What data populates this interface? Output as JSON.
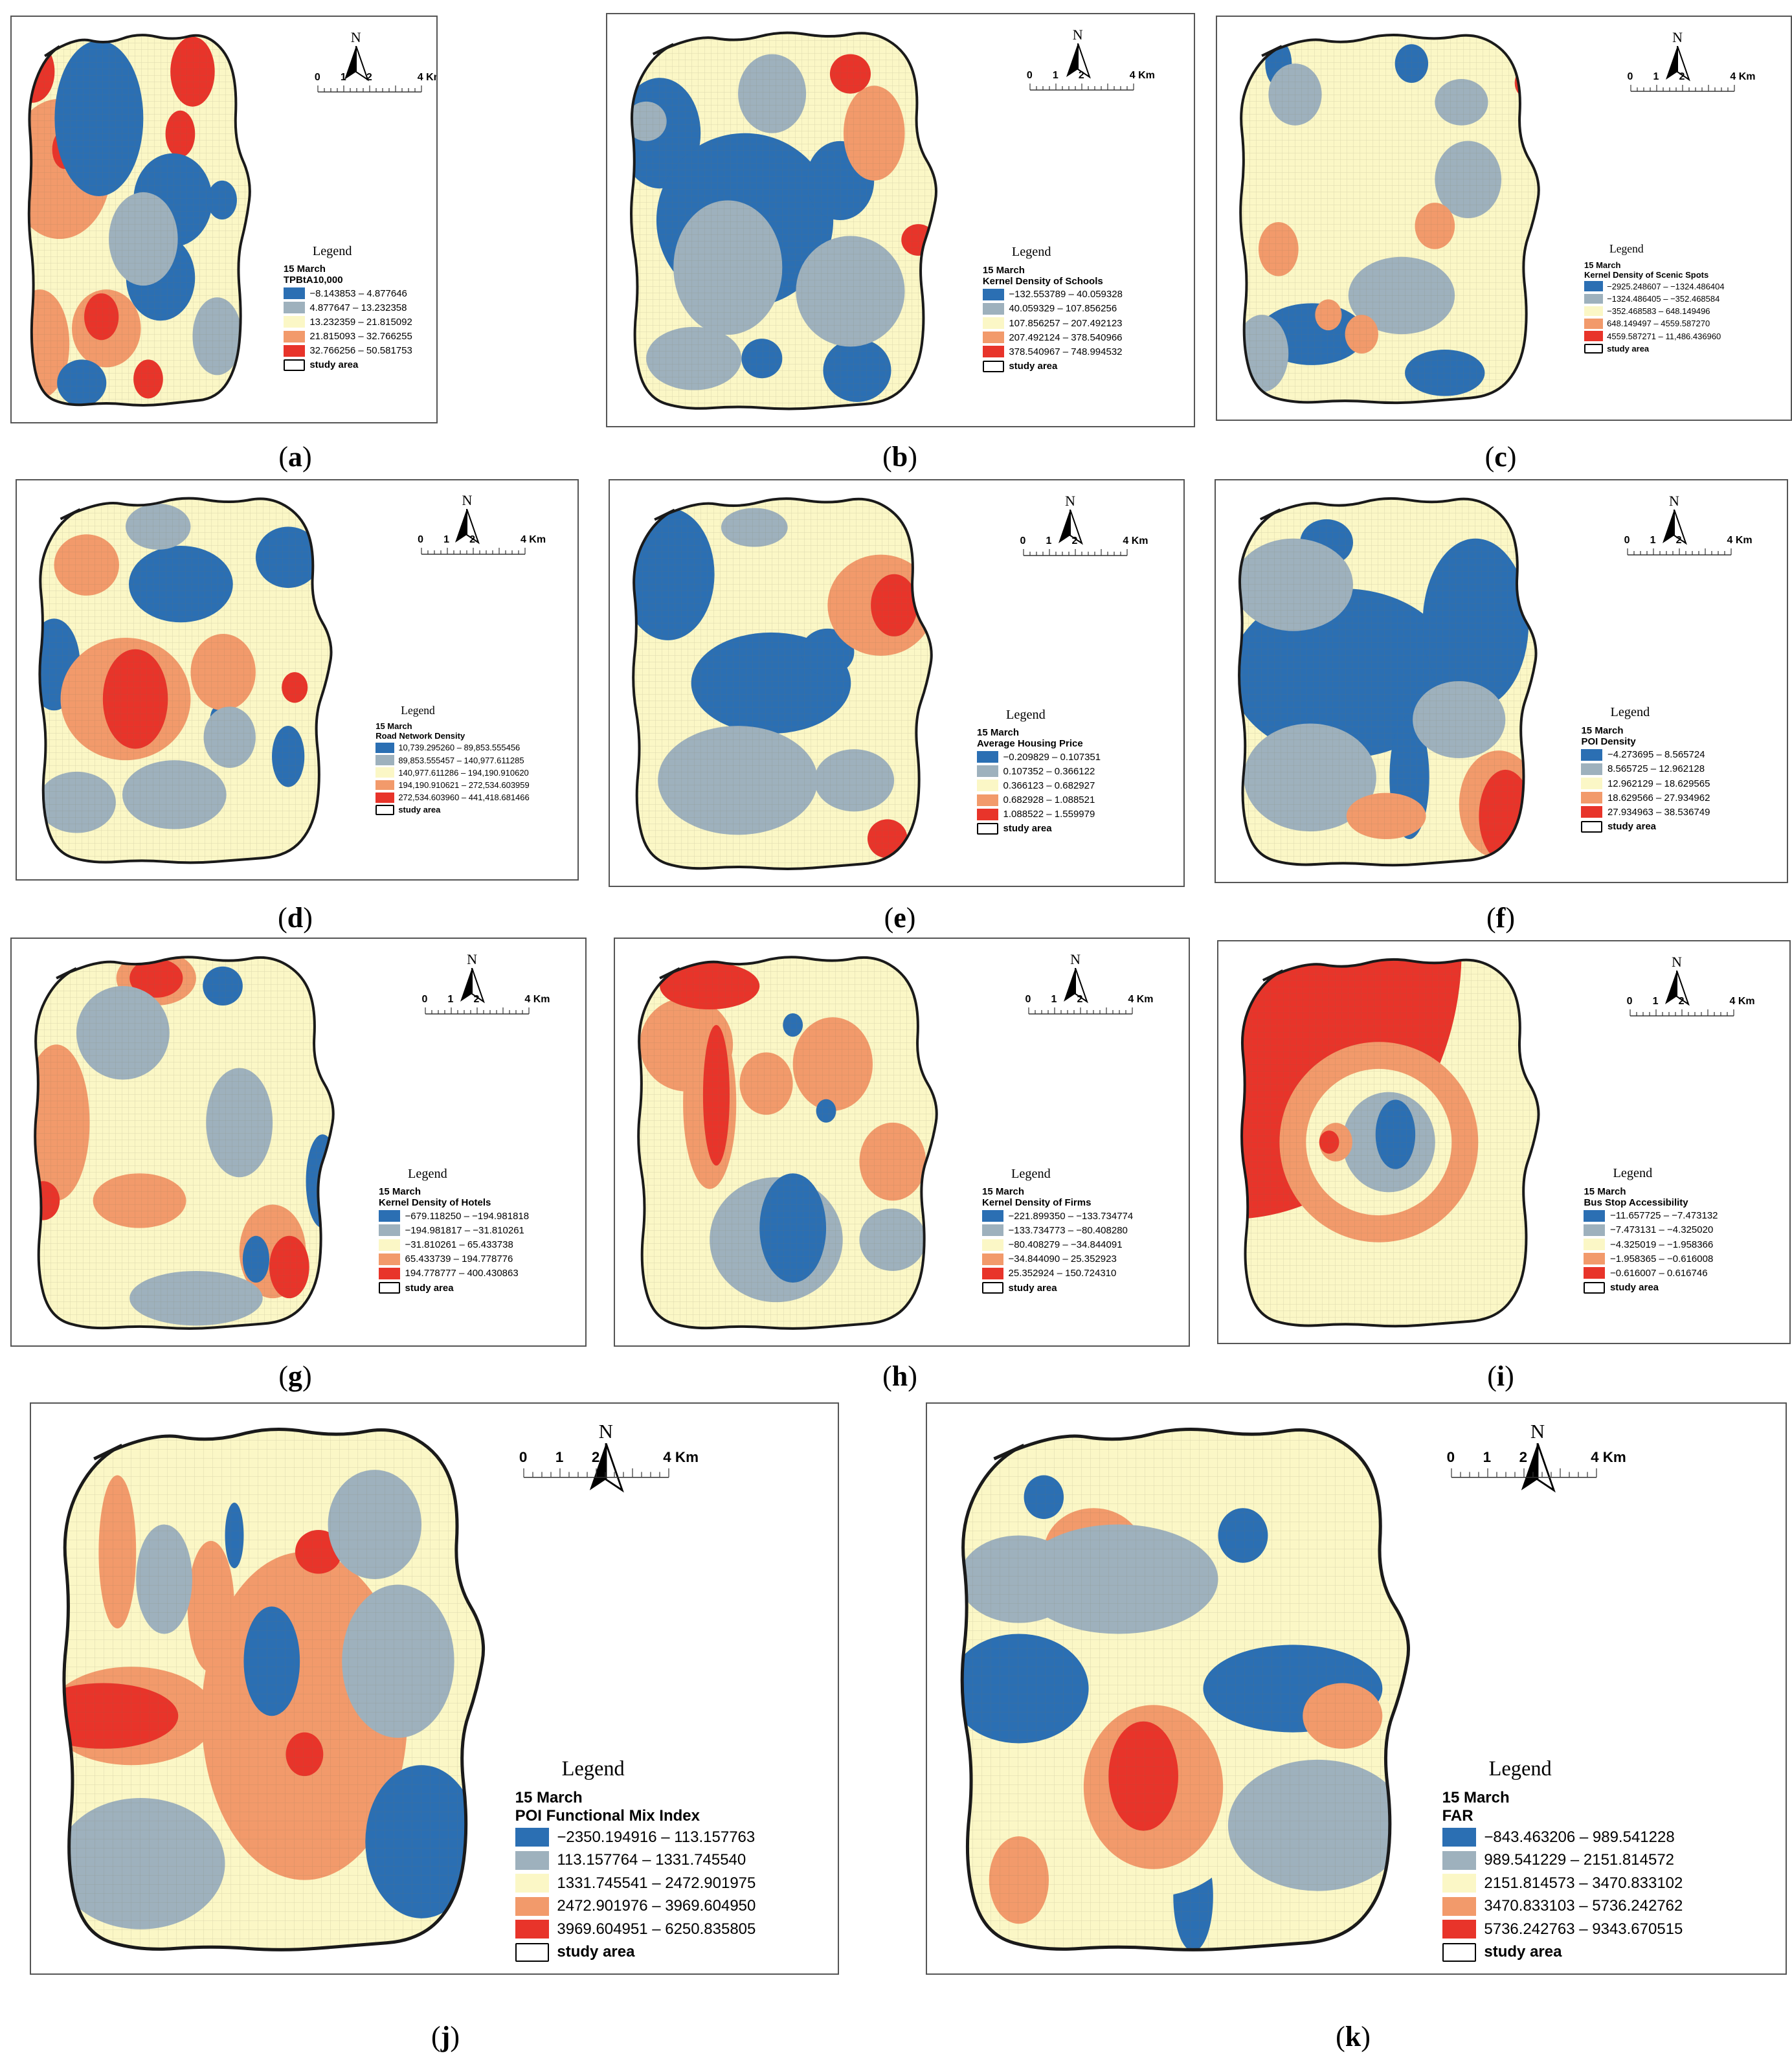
{
  "colors": {
    "class_1": "#2b6fb3",
    "class_2": "#9eb1bd",
    "class_3": "#fbf7c6",
    "class_4": "#f29a6b",
    "class_5": "#e8342a",
    "boundary": "#1a1a1a",
    "grid": "#e6e0b8"
  },
  "map_common": {
    "north_label": "N",
    "scale_labels": [
      "0",
      "1",
      "2",
      "4 Km"
    ],
    "legend_title": "Legend",
    "date": "15 March",
    "study_area_label": "study area",
    "north_icon": "north-arrow-icon"
  },
  "panels": [
    {
      "id": "a",
      "caption": "a",
      "factor": "TPBtA10,000",
      "classes": [
        "−8.143853 – 4.877646",
        "4.877647 – 13.232358",
        "13.232359 – 21.815092",
        "21.815093 – 32.766255",
        "32.766256 – 50.581753"
      ],
      "blobs": [
        [
          0.05,
          0.12,
          0.09,
          0.08,
          5
        ],
        [
          0.7,
          0.12,
          0.09,
          0.09,
          5
        ],
        [
          0.16,
          0.37,
          0.21,
          0.18,
          4
        ],
        [
          0.08,
          0.82,
          0.12,
          0.14,
          4
        ],
        [
          0.35,
          0.78,
          0.14,
          0.1,
          4
        ],
        [
          0.18,
          0.32,
          0.05,
          0.05,
          5
        ],
        [
          0.65,
          0.28,
          0.06,
          0.06,
          5
        ],
        [
          0.33,
          0.75,
          0.07,
          0.06,
          5
        ],
        [
          0.52,
          0.91,
          0.06,
          0.05,
          5
        ],
        [
          0.32,
          0.24,
          0.18,
          0.2,
          1
        ],
        [
          0.62,
          0.45,
          0.16,
          0.12,
          1
        ],
        [
          0.82,
          0.45,
          0.06,
          0.05,
          1
        ],
        [
          0.57,
          0.65,
          0.14,
          0.11,
          1
        ],
        [
          0.25,
          0.92,
          0.1,
          0.06,
          1
        ],
        [
          0.5,
          0.55,
          0.14,
          0.12,
          2
        ],
        [
          0.8,
          0.8,
          0.1,
          0.1,
          2
        ]
      ]
    },
    {
      "id": "b",
      "caption": "b",
      "factor": "Kernel Density of Schools",
      "classes": [
        "−132.553789 – 40.059328",
        "40.059329 – 107.856256",
        "107.856257 – 207.492123",
        "207.492124 – 378.540966",
        "378.540967 – 748.994532"
      ],
      "blobs": [
        [
          0.45,
          0.18,
          0.1,
          0.1,
          2
        ],
        [
          0.12,
          0.28,
          0.12,
          0.14,
          1
        ],
        [
          0.37,
          0.5,
          0.26,
          0.22,
          1
        ],
        [
          0.65,
          0.4,
          0.1,
          0.1,
          1
        ],
        [
          0.7,
          0.88,
          0.1,
          0.08,
          1
        ],
        [
          0.42,
          0.85,
          0.06,
          0.05,
          1
        ],
        [
          0.32,
          0.62,
          0.16,
          0.17,
          2
        ],
        [
          0.22,
          0.85,
          0.14,
          0.08,
          2
        ],
        [
          0.68,
          0.68,
          0.16,
          0.14,
          2
        ],
        [
          0.75,
          0.28,
          0.09,
          0.12,
          4
        ],
        [
          0.88,
          0.55,
          0.05,
          0.04,
          5
        ],
        [
          0.68,
          0.13,
          0.06,
          0.05,
          5
        ],
        [
          0.08,
          0.25,
          0.06,
          0.05,
          2
        ]
      ]
    },
    {
      "id": "c",
      "caption": "c",
      "factor": "Kernel Density of Scenic Spots",
      "classes": [
        "−2925.248607 – −1324.486404",
        "−1324.486405 – −352.468584",
        "−352.468583 – 648.149496",
        "648.149497 – 4559.587270",
        "4559.587271 – 11,486.436960"
      ],
      "blobs": [
        [
          0.25,
          0.8,
          0.16,
          0.08,
          1
        ],
        [
          0.65,
          0.9,
          0.12,
          0.06,
          1
        ],
        [
          0.15,
          0.1,
          0.04,
          0.06,
          1
        ],
        [
          0.55,
          0.1,
          0.05,
          0.05,
          1
        ],
        [
          0.1,
          0.85,
          0.08,
          0.1,
          2
        ],
        [
          0.52,
          0.7,
          0.16,
          0.1,
          2
        ],
        [
          0.72,
          0.4,
          0.1,
          0.1,
          2
        ],
        [
          0.2,
          0.18,
          0.08,
          0.08,
          2
        ],
        [
          0.7,
          0.2,
          0.08,
          0.06,
          2
        ],
        [
          0.15,
          0.58,
          0.06,
          0.07,
          4
        ],
        [
          0.62,
          0.52,
          0.06,
          0.06,
          4
        ],
        [
          0.4,
          0.8,
          0.05,
          0.05,
          4
        ],
        [
          0.9,
          0.15,
          0.04,
          0.04,
          5
        ],
        [
          0.3,
          0.75,
          0.04,
          0.04,
          4
        ]
      ]
    },
    {
      "id": "d",
      "caption": "d",
      "factor": "Road Network Density",
      "classes": [
        "10,739.295260 – 89,853.555456",
        "89,853.555457 – 140,977.611285",
        "140,977.611286 – 194,190.910620",
        "194,190.910621 – 272,534.603959",
        "272,534.603960 – 441,418.681466"
      ],
      "blobs": [
        [
          0.08,
          0.46,
          0.08,
          0.12,
          1
        ],
        [
          0.47,
          0.25,
          0.16,
          0.1,
          1
        ],
        [
          0.8,
          0.18,
          0.1,
          0.08,
          1
        ],
        [
          0.8,
          0.7,
          0.05,
          0.08,
          1
        ],
        [
          0.6,
          0.6,
          0.04,
          0.04,
          1
        ],
        [
          0.3,
          0.55,
          0.2,
          0.16,
          4
        ],
        [
          0.18,
          0.2,
          0.1,
          0.08,
          4
        ],
        [
          0.6,
          0.48,
          0.1,
          0.1,
          4
        ],
        [
          0.33,
          0.55,
          0.1,
          0.13,
          5
        ],
        [
          0.82,
          0.52,
          0.04,
          0.04,
          5
        ],
        [
          0.45,
          0.8,
          0.16,
          0.09,
          2
        ],
        [
          0.15,
          0.82,
          0.12,
          0.08,
          2
        ],
        [
          0.4,
          0.1,
          0.1,
          0.06,
          2
        ],
        [
          0.62,
          0.65,
          0.08,
          0.08,
          2
        ]
      ]
    },
    {
      "id": "e",
      "caption": "e",
      "factor": "Average Housing Price",
      "classes": [
        "−0.209829 – 0.107351",
        "0.107352 – 0.366122",
        "0.366123 – 0.682927",
        "0.682928 – 1.088521",
        "1.088522 – 1.559979"
      ],
      "blobs": [
        [
          0.14,
          0.22,
          0.14,
          0.17,
          1
        ],
        [
          0.45,
          0.5,
          0.24,
          0.13,
          1
        ],
        [
          0.62,
          0.42,
          0.08,
          0.06,
          1
        ],
        [
          0.35,
          0.75,
          0.24,
          0.14,
          2
        ],
        [
          0.7,
          0.75,
          0.12,
          0.08,
          2
        ],
        [
          0.4,
          0.1,
          0.1,
          0.05,
          2
        ],
        [
          0.78,
          0.3,
          0.16,
          0.13,
          4
        ],
        [
          0.82,
          0.3,
          0.07,
          0.08,
          5
        ],
        [
          0.8,
          0.9,
          0.06,
          0.05,
          5
        ]
      ]
    },
    {
      "id": "f",
      "caption": "f",
      "factor": "POI Density",
      "classes": [
        "−4.273695 – 8.565724",
        "8.565725 – 12.962128",
        "12.962129 – 18.629565",
        "18.629566 – 27.934962",
        "27.934963 – 38.536749"
      ],
      "blobs": [
        [
          0.35,
          0.48,
          0.34,
          0.22,
          1
        ],
        [
          0.75,
          0.35,
          0.16,
          0.22,
          1
        ],
        [
          0.55,
          0.75,
          0.06,
          0.16,
          1
        ],
        [
          0.3,
          0.14,
          0.08,
          0.06,
          1
        ],
        [
          0.2,
          0.25,
          0.18,
          0.12,
          2
        ],
        [
          0.25,
          0.75,
          0.2,
          0.14,
          2
        ],
        [
          0.7,
          0.6,
          0.14,
          0.1,
          2
        ],
        [
          0.82,
          0.82,
          0.12,
          0.14,
          4
        ],
        [
          0.48,
          0.85,
          0.12,
          0.06,
          4
        ],
        [
          0.84,
          0.85,
          0.08,
          0.12,
          5
        ]
      ]
    },
    {
      "id": "g",
      "caption": "g",
      "factor": "Kernel Density of Hotels",
      "classes": [
        "−679.118250 – −194.981818",
        "−194.981817 – −31.810261",
        "−31.810261 – 65.433738",
        "65.433739 – 194.778776",
        "194.778777 – 400.430863"
      ],
      "blobs": [
        [
          0.1,
          0.45,
          0.1,
          0.2,
          4
        ],
        [
          0.4,
          0.08,
          0.12,
          0.07,
          4
        ],
        [
          0.06,
          0.65,
          0.05,
          0.05,
          5
        ],
        [
          0.4,
          0.08,
          0.08,
          0.05,
          5
        ],
        [
          0.35,
          0.65,
          0.14,
          0.07,
          4
        ],
        [
          0.75,
          0.78,
          0.1,
          0.12,
          4
        ],
        [
          0.8,
          0.82,
          0.06,
          0.08,
          5
        ],
        [
          0.3,
          0.22,
          0.14,
          0.12,
          2
        ],
        [
          0.65,
          0.45,
          0.1,
          0.14,
          2
        ],
        [
          0.52,
          0.9,
          0.2,
          0.07,
          2
        ],
        [
          0.9,
          0.6,
          0.05,
          0.12,
          1
        ],
        [
          0.7,
          0.8,
          0.04,
          0.06,
          1
        ],
        [
          0.6,
          0.1,
          0.06,
          0.05,
          1
        ]
      ]
    },
    {
      "id": "h",
      "caption": "h",
      "factor": "Kernel Density of Firms",
      "classes": [
        "−221.899350 – −133.734774",
        "−133.734773 – −80.408280",
        "−80.408279 – −34.844091",
        "−34.844090 – 25.352923",
        "25.352924 – 150.724310"
      ],
      "blobs": [
        [
          0.18,
          0.25,
          0.14,
          0.12,
          4
        ],
        [
          0.25,
          0.4,
          0.08,
          0.22,
          4
        ],
        [
          0.27,
          0.38,
          0.04,
          0.18,
          5
        ],
        [
          0.25,
          0.1,
          0.15,
          0.06,
          5
        ],
        [
          0.62,
          0.3,
          0.12,
          0.12,
          4
        ],
        [
          0.8,
          0.55,
          0.1,
          0.1,
          4
        ],
        [
          0.42,
          0.35,
          0.08,
          0.08,
          4
        ],
        [
          0.45,
          0.75,
          0.2,
          0.16,
          2
        ],
        [
          0.8,
          0.75,
          0.1,
          0.08,
          2
        ],
        [
          0.5,
          0.72,
          0.1,
          0.14,
          1
        ],
        [
          0.5,
          0.2,
          0.03,
          0.03,
          1
        ],
        [
          0.6,
          0.42,
          0.03,
          0.03,
          1
        ]
      ]
    },
    {
      "id": "i",
      "caption": "i",
      "factor": "Bus Stop Accessibility",
      "classes": [
        "−11.657725 – −7.473132",
        "−7.473131 – −4.325020",
        "−4.325019 – −1.958366",
        "−1.958365 – −0.616008",
        "−0.616007 – 0.616746"
      ],
      "blobs": [
        [
          0.0,
          0.0,
          0.7,
          0.7,
          5
        ],
        [
          0.45,
          0.5,
          0.3,
          0.26,
          4
        ],
        [
          0.45,
          0.5,
          0.22,
          0.19,
          3
        ],
        [
          0.48,
          0.5,
          0.14,
          0.13,
          2
        ],
        [
          0.5,
          0.48,
          0.06,
          0.09,
          1
        ],
        [
          0.32,
          0.5,
          0.05,
          0.05,
          4
        ],
        [
          0.3,
          0.5,
          0.03,
          0.03,
          5
        ]
      ]
    },
    {
      "id": "j",
      "caption": "j",
      "factor": "POI Functional Mix Index",
      "classes": [
        "−2350.194916 – 113.157763",
        "113.157764 – 1331.745540",
        "1331.745541 – 2472.901975",
        "2472.901976 – 3969.604950",
        "3969.604951 – 6250.835805"
      ],
      "blobs": [
        [
          0.55,
          0.55,
          0.22,
          0.3,
          4
        ],
        [
          0.18,
          0.55,
          0.18,
          0.09,
          4
        ],
        [
          0.15,
          0.25,
          0.04,
          0.14,
          4
        ],
        [
          0.35,
          0.35,
          0.05,
          0.12,
          4
        ],
        [
          0.12,
          0.55,
          0.16,
          0.06,
          5
        ],
        [
          0.58,
          0.25,
          0.05,
          0.04,
          5
        ],
        [
          0.55,
          0.62,
          0.04,
          0.04,
          5
        ],
        [
          0.48,
          0.45,
          0.06,
          0.1,
          1
        ],
        [
          0.8,
          0.78,
          0.12,
          0.14,
          1
        ],
        [
          0.4,
          0.22,
          0.02,
          0.06,
          1
        ],
        [
          0.2,
          0.82,
          0.18,
          0.12,
          2
        ],
        [
          0.75,
          0.45,
          0.12,
          0.14,
          2
        ],
        [
          0.7,
          0.2,
          0.1,
          0.1,
          2
        ],
        [
          0.25,
          0.3,
          0.06,
          0.1,
          2
        ]
      ]
    },
    {
      "id": "k",
      "caption": "k",
      "factor": "FAR",
      "classes": [
        "−843.463206 – 989.541228",
        "989.541229 – 2151.814572",
        "2151.814573 – 3470.833102",
        "3470.833103 – 5736.242762",
        "5736.242763 – 9343.670515"
      ],
      "blobs": [
        [
          0.15,
          0.5,
          0.14,
          0.1,
          1
        ],
        [
          0.7,
          0.5,
          0.18,
          0.08,
          1
        ],
        [
          0.6,
          0.22,
          0.05,
          0.05,
          1
        ],
        [
          0.2,
          0.15,
          0.04,
          0.04,
          1
        ],
        [
          0.5,
          0.88,
          0.04,
          0.1,
          1
        ],
        [
          0.42,
          0.7,
          0.2,
          0.18,
          3
        ],
        [
          0.42,
          0.68,
          0.14,
          0.15,
          4
        ],
        [
          0.4,
          0.66,
          0.07,
          0.1,
          5
        ],
        [
          0.3,
          0.25,
          0.1,
          0.08,
          4
        ],
        [
          0.8,
          0.55,
          0.08,
          0.06,
          4
        ],
        [
          0.15,
          0.85,
          0.06,
          0.08,
          4
        ],
        [
          0.35,
          0.3,
          0.2,
          0.1,
          2
        ],
        [
          0.75,
          0.75,
          0.18,
          0.12,
          2
        ],
        [
          0.15,
          0.3,
          0.12,
          0.08,
          2
        ]
      ]
    }
  ]
}
